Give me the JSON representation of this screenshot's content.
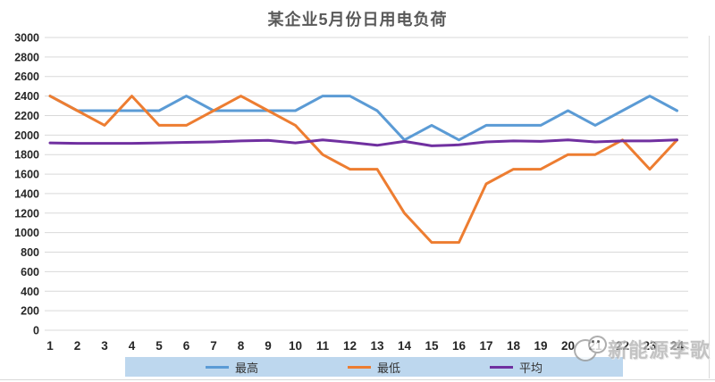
{
  "title": "某企业5月份日用电负荷",
  "watermark": {
    "text": "新能源李歌"
  },
  "colors": {
    "series_max": "#5B9BD5",
    "series_min": "#ED7D31",
    "series_avg": "#7030A0",
    "gridline": "#D9D9D9",
    "legend_bg": "#BDD7EE",
    "title_text": "#595959",
    "tick_text": "#262626"
  },
  "chart_data": {
    "type": "line",
    "title": "某企业5月份日用电负荷",
    "xlabel": "",
    "ylabel": "",
    "x": [
      1,
      2,
      3,
      4,
      5,
      6,
      7,
      8,
      9,
      10,
      11,
      12,
      13,
      14,
      15,
      16,
      17,
      18,
      19,
      20,
      21,
      22,
      23,
      24
    ],
    "ylim": [
      0,
      3000
    ],
    "ytick_step": 200,
    "grid": true,
    "legend_position": "bottom",
    "series": [
      {
        "name": "最高",
        "color": "#5B9BD5",
        "values": [
          2400,
          2250,
          2250,
          2250,
          2250,
          2400,
          2250,
          2250,
          2250,
          2250,
          2400,
          2400,
          2250,
          1950,
          2100,
          1950,
          2100,
          2100,
          2100,
          2250,
          2100,
          2250,
          2400,
          2250
        ]
      },
      {
        "name": "最低",
        "color": "#ED7D31",
        "values": [
          2400,
          2250,
          2100,
          2400,
          2100,
          2100,
          2250,
          2400,
          2250,
          2100,
          1800,
          1650,
          1650,
          1200,
          900,
          900,
          1500,
          1650,
          1650,
          1800,
          1800,
          1950,
          1650,
          1950
        ]
      },
      {
        "name": "平均",
        "color": "#7030A0",
        "values": [
          1920,
          1915,
          1915,
          1915,
          1920,
          1925,
          1930,
          1940,
          1945,
          1920,
          1950,
          1925,
          1895,
          1935,
          1890,
          1900,
          1930,
          1940,
          1935,
          1950,
          1930,
          1940,
          1940,
          1950
        ]
      }
    ]
  }
}
